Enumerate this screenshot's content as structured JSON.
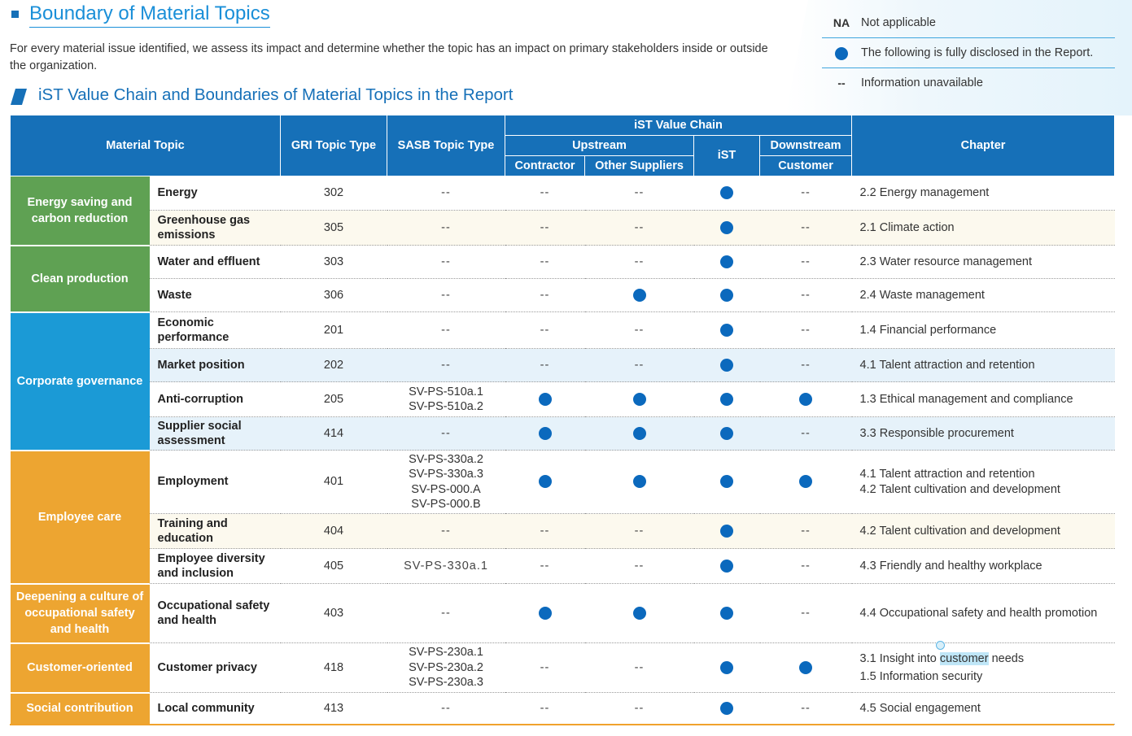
{
  "header": {
    "title": "Boundary of Material Topics",
    "intro": "For every material issue identified, we assess its impact and determine whether the topic has an impact on primary stakeholders inside or outside the organization.",
    "subtitle": "iST Value Chain and Boundaries of Material Topics in the Report"
  },
  "legend": {
    "na_key": "NA",
    "na_label": "Not applicable",
    "dot_label": "The following is fully disclosed in the Report.",
    "dash_key": "--",
    "dash_label": "Information unavailable"
  },
  "table": {
    "headers": {
      "material_topic": "Material Topic",
      "gri": "GRI Topic Type",
      "sasb": "SASB Topic Type",
      "value_chain": "iST Value Chain",
      "upstream": "Upstream",
      "ist": "iST",
      "downstream": "Downstream",
      "contractor": "Contractor",
      "other_suppliers": "Other Suppliers",
      "customer": "Customer",
      "chapter": "Chapter"
    },
    "categories": [
      {
        "label": "Energy saving and carbon reduction",
        "color": "#5fa153"
      },
      {
        "label": "Clean production",
        "color": "#5fa153"
      },
      {
        "label": "Corporate governance",
        "color": "#1b9ad6"
      },
      {
        "label": "Employee care",
        "color": "#eda531"
      },
      {
        "label": "Deepening a culture of occupational safety and health",
        "color": "#eda531"
      },
      {
        "label": "Customer-oriented",
        "color": "#eda531"
      },
      {
        "label": "Social contribution",
        "color": "#eda531"
      }
    ],
    "rows": [
      {
        "topic": "Energy",
        "gri": "302",
        "sasb": "--",
        "contractor": "--",
        "other": "--",
        "ist": "dot",
        "customer": "--",
        "chapter": "2.2 Energy management"
      },
      {
        "topic": "Greenhouse gas emissions",
        "gri": "305",
        "sasb": "--",
        "contractor": "--",
        "other": "--",
        "ist": "dot",
        "customer": "--",
        "chapter": "2.1 Climate action"
      },
      {
        "topic": "Water and effluent",
        "gri": "303",
        "sasb": "--",
        "contractor": "--",
        "other": "--",
        "ist": "dot",
        "customer": "--",
        "chapter": "2.3 Water resource management"
      },
      {
        "topic": "Waste",
        "gri": "306",
        "sasb": "--",
        "contractor": "--",
        "other": "dot",
        "ist": "dot",
        "customer": "--",
        "chapter": "2.4 Waste management"
      },
      {
        "topic": "Economic performance",
        "gri": "201",
        "sasb": "--",
        "contractor": "--",
        "other": "--",
        "ist": "dot",
        "customer": "--",
        "chapter": "1.4 Financial performance"
      },
      {
        "topic": "Market position",
        "gri": "202",
        "sasb": "--",
        "contractor": "--",
        "other": "--",
        "ist": "dot",
        "customer": "--",
        "chapter": "4.1 Talent attraction and retention"
      },
      {
        "topic": "Anti-corruption",
        "gri": "205",
        "sasb": [
          "SV-PS-510a.1",
          "SV-PS-510a.2"
        ],
        "contractor": "dot",
        "other": "dot",
        "ist": "dot",
        "customer": "dot",
        "chapter": "1.3 Ethical management and compliance"
      },
      {
        "topic": "Supplier social assessment",
        "gri": "414",
        "sasb": "--",
        "contractor": "dot",
        "other": "dot",
        "ist": "dot",
        "customer": "--",
        "chapter": "3.3 Responsible procurement"
      },
      {
        "topic": "Employment",
        "gri": "401",
        "sasb": [
          "SV-PS-330a.2",
          "SV-PS-330a.3",
          "SV-PS-000.A",
          "SV-PS-000.B"
        ],
        "contractor": "dot",
        "other": "dot",
        "ist": "dot",
        "customer": "dot",
        "chapter": [
          "4.1 Talent attraction and retention",
          "4.2 Talent cultivation and development"
        ]
      },
      {
        "topic": "Training and education",
        "gri": "404",
        "sasb": "--",
        "contractor": "--",
        "other": "--",
        "ist": "dot",
        "customer": "--",
        "chapter": "4.2 Talent cultivation and development"
      },
      {
        "topic": "Employee diversity and inclusion",
        "gri": "405",
        "sasb": "SV-PS-330a.1",
        "contractor": "--",
        "other": "--",
        "ist": "dot",
        "customer": "--",
        "chapter": "4.3 Friendly and healthy workplace"
      },
      {
        "topic": "Occupational safety and health",
        "gri": "403",
        "sasb": "--",
        "contractor": "dot",
        "other": "dot",
        "ist": "dot",
        "customer": "--",
        "chapter": "4.4 Occupational safety and health promotion"
      },
      {
        "topic": "Customer privacy",
        "gri": "418",
        "sasb": [
          "SV-PS-230a.1",
          "SV-PS-230a.2",
          "SV-PS-230a.3"
        ],
        "contractor": "--",
        "other": "--",
        "ist": "dot",
        "customer": "dot",
        "chapter": [
          "3.1 Insight into",
          "customer",
          "needs",
          "1.5 Information security"
        ]
      },
      {
        "topic": "Local community",
        "gri": "413",
        "sasb": "--",
        "contractor": "--",
        "other": "--",
        "ist": "dot",
        "customer": "--",
        "chapter": "4.5 Social engagement"
      }
    ]
  }
}
